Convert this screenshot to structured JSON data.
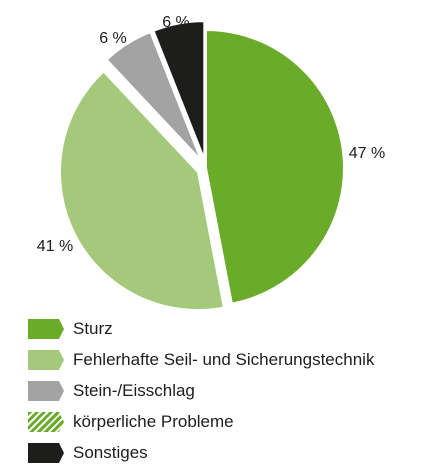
{
  "chart_data": {
    "type": "pie",
    "slices": [
      {
        "label": "Sturz",
        "value": 47,
        "display": "47 %",
        "color": "#6aac2a",
        "pattern": "solid",
        "exploded": false
      },
      {
        "label": "Fehlerhafte Seil- und Sicherungstechnik",
        "value": 41,
        "display": "41 %",
        "color": "#a4c97a",
        "pattern": "solid",
        "exploded": true
      },
      {
        "label": "Stein-/Eisschlag",
        "value": 6,
        "display": "6 %",
        "color": "#a3a3a4",
        "pattern": "solid",
        "exploded": true
      },
      {
        "label": "körperliche Probleme",
        "value": 0,
        "display": "",
        "color": "#6aac2a",
        "pattern": "diagonal-stripes",
        "exploded": false
      },
      {
        "label": "Sonstiges",
        "value": 6,
        "display": "6 %",
        "color": "#1d1d1b",
        "pattern": "solid",
        "exploded": true
      }
    ],
    "legend": {
      "position": "bottom-left",
      "items": [
        {
          "label": "Sturz",
          "color": "#6aac2a",
          "pattern": "solid"
        },
        {
          "label": "Fehlerhafte Seil- und Sicherungstechnik",
          "color": "#a4c97a",
          "pattern": "solid"
        },
        {
          "label": "Stein-/Eisschlag",
          "color": "#a3a3a4",
          "pattern": "solid"
        },
        {
          "label": "körperliche Probleme",
          "color": "#6aac2a",
          "pattern": "diagonal-stripes"
        },
        {
          "label": "Sonstiges",
          "color": "#1d1d1b",
          "pattern": "solid"
        }
      ]
    },
    "title": "",
    "grid": false
  }
}
